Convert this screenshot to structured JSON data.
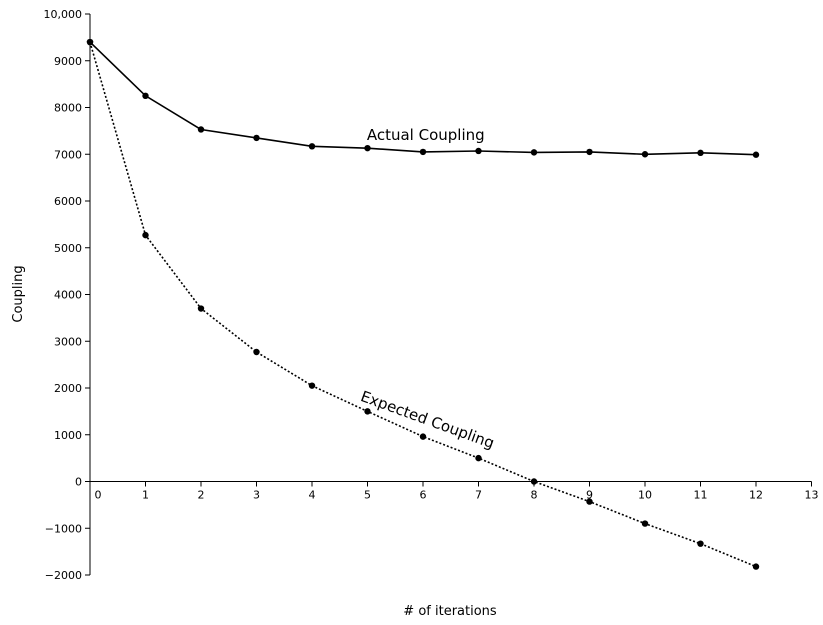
{
  "chart_data": {
    "type": "line",
    "title": "",
    "xlabel": "# of iterations",
    "ylabel": "Coupling",
    "xlim": [
      0,
      13
    ],
    "ylim": [
      -2000,
      10000
    ],
    "x_ticks": [
      "0",
      "1",
      "2",
      "3",
      "4",
      "5",
      "6",
      "7",
      "8",
      "9",
      "10",
      "11",
      "12",
      "13"
    ],
    "y_ticks": [
      "10,000",
      "9000",
      "8000",
      "7000",
      "6000",
      "5000",
      "4000",
      "3000",
      "2000",
      "1000",
      "0",
      "−1000",
      "−2000"
    ],
    "grid": false,
    "x": [
      0,
      1,
      2,
      3,
      4,
      5,
      6,
      7,
      8,
      9,
      10,
      11,
      12
    ],
    "series": [
      {
        "name": "Actual Coupling",
        "style": "solid",
        "values": [
          9400,
          8250,
          7530,
          7350,
          7170,
          7130,
          7050,
          7070,
          7040,
          7050,
          7000,
          7030,
          6990
        ]
      },
      {
        "name": "Expected Coupling",
        "style": "dotted",
        "values": [
          9400,
          5270,
          3700,
          2770,
          2050,
          1500,
          960,
          500,
          0,
          -430,
          -900,
          -1330,
          -1820
        ]
      }
    ],
    "annotations": [
      {
        "text": "Actual Coupling",
        "x": 6.05,
        "y": 7300
      },
      {
        "text": "Expected Coupling",
        "x": 6.05,
        "y": 1220
      }
    ]
  }
}
